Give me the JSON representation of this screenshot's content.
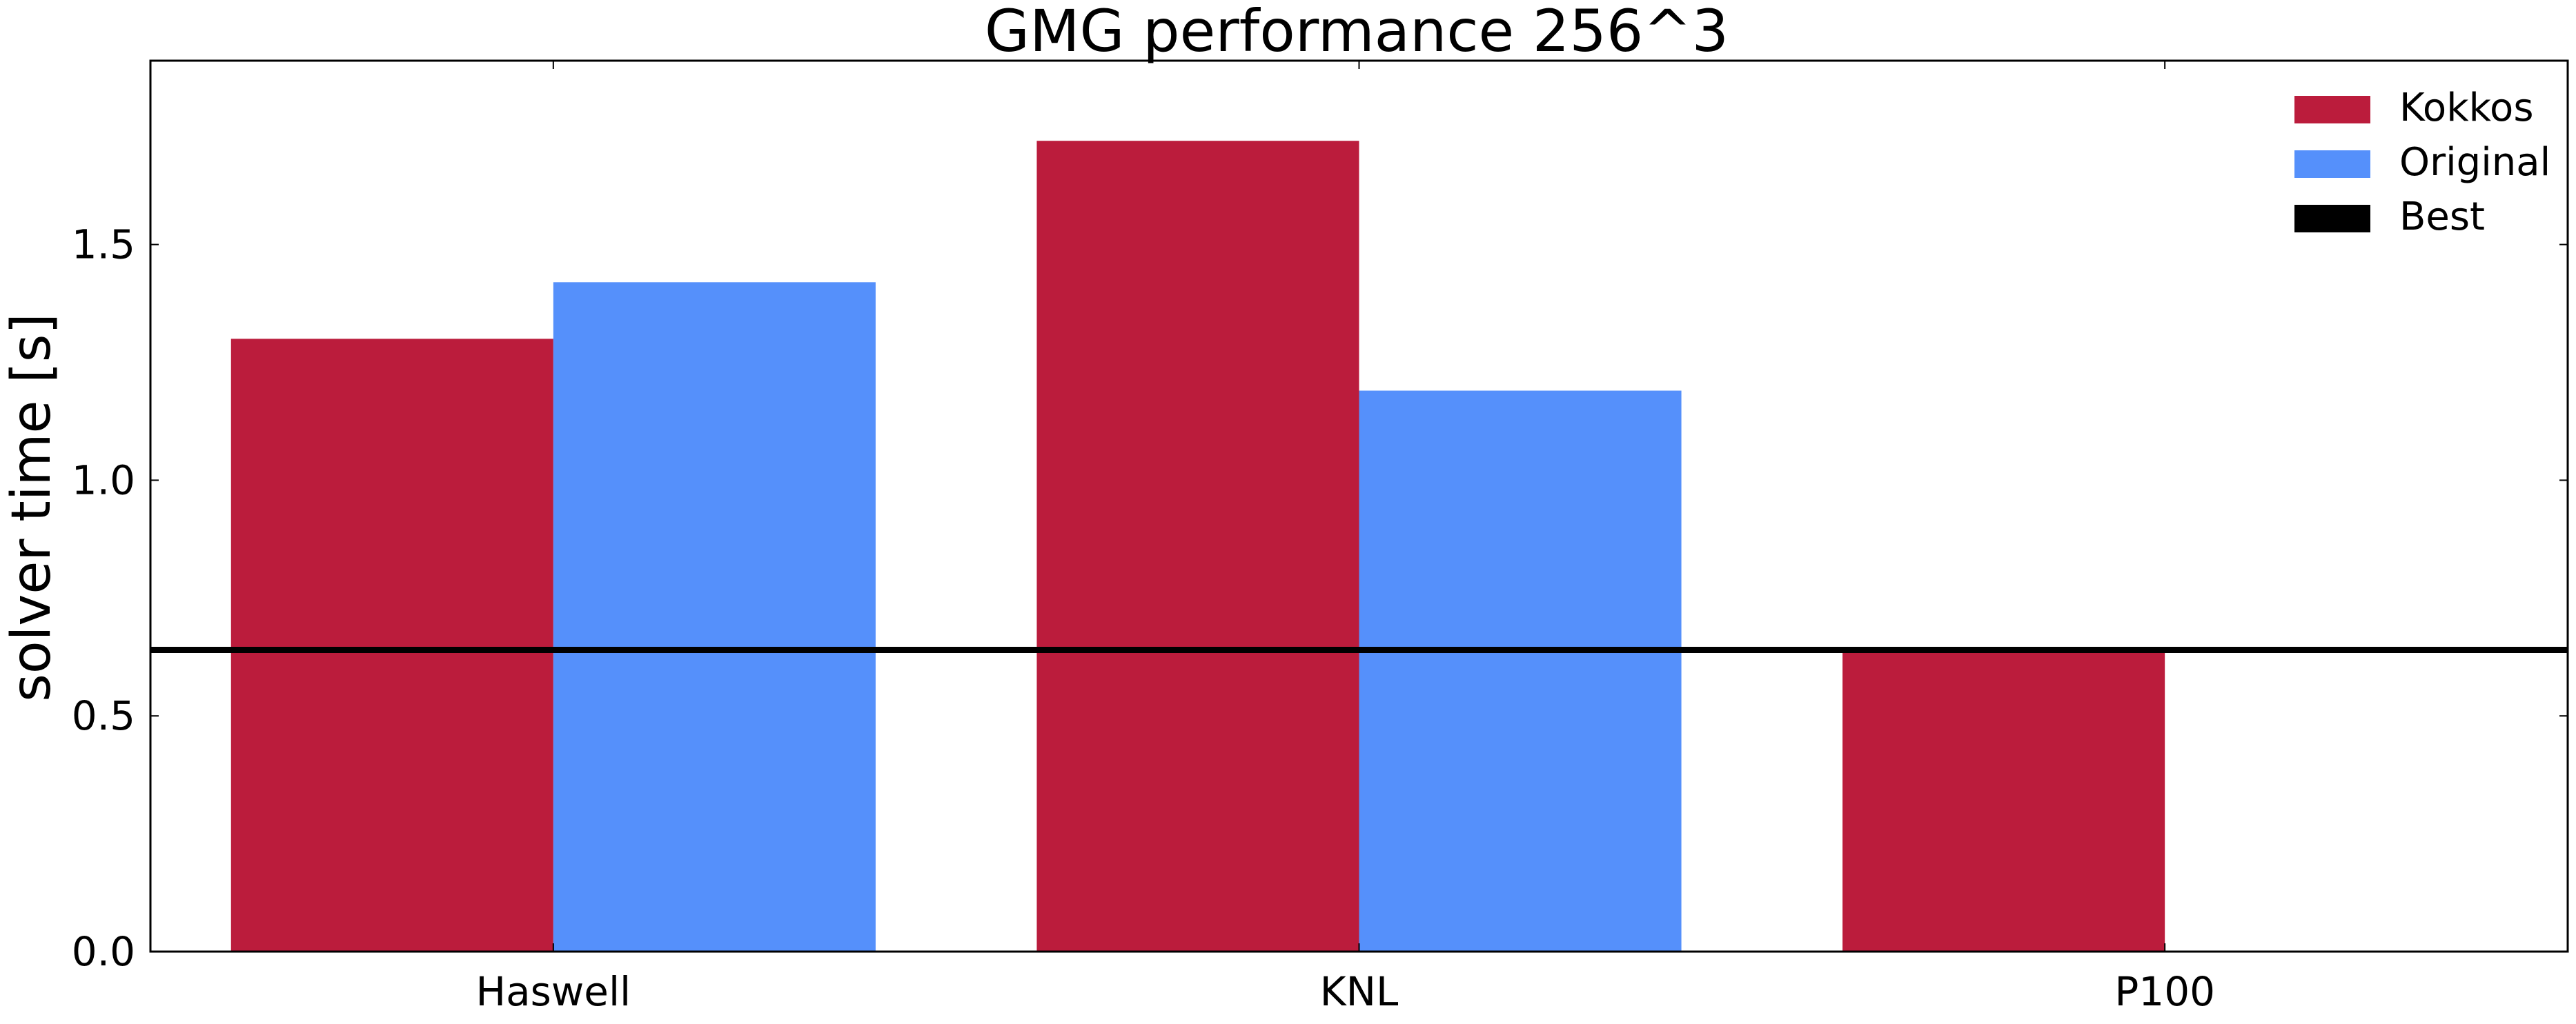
{
  "chart_data": {
    "type": "bar",
    "title": "GMG performance 256^3",
    "xlabel": "",
    "ylabel": "solver time [s]",
    "categories": [
      "Haswell",
      "KNL",
      "P100"
    ],
    "series": [
      {
        "name": "Kokkos",
        "color": "#bb1c3c",
        "values": [
          1.3,
          1.72,
          0.64
        ]
      },
      {
        "name": "Original",
        "color": "#5590fb",
        "values": [
          1.42,
          1.19,
          null
        ]
      }
    ],
    "reference_lines": [
      {
        "name": "Best",
        "color": "#000000",
        "value": 0.64
      }
    ],
    "ylim": [
      0,
      1.89
    ],
    "yticks": [
      "0.0",
      "0.5",
      "1.0",
      "1.5"
    ],
    "legend": "top-right",
    "grid": false
  }
}
